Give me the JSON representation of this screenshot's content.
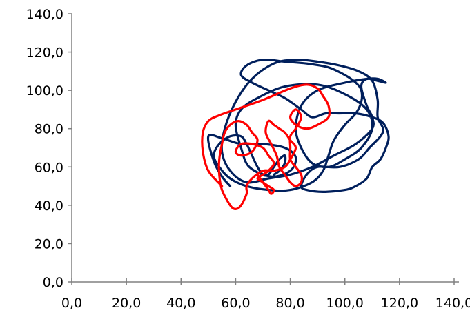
{
  "chart_data": {
    "type": "line",
    "title": "",
    "xlabel": "",
    "ylabel": "",
    "xlim": [
      0,
      140
    ],
    "ylim": [
      0,
      140
    ],
    "x_ticks": [
      "0,0",
      "20,0",
      "40,0",
      "60,0",
      "80,0",
      "100,0",
      "120,0",
      "140,0"
    ],
    "y_ticks": [
      "0,0",
      "20,0",
      "40,0",
      "60,0",
      "80,0",
      "100,0",
      "120,0",
      "140,0"
    ],
    "x_tick_values": [
      0,
      20,
      40,
      60,
      80,
      100,
      120,
      140
    ],
    "y_tick_values": [
      0,
      20,
      40,
      60,
      80,
      100,
      120,
      140
    ],
    "grid": false,
    "legend": "none",
    "series": [
      {
        "color": "#001f5c",
        "points": [
          [
            58,
            50
          ],
          [
            55,
            55
          ],
          [
            52,
            63
          ],
          [
            50,
            76
          ],
          [
            55,
            75
          ],
          [
            62,
            72
          ],
          [
            70,
            72
          ],
          [
            78,
            70
          ],
          [
            82,
            65
          ],
          [
            80,
            58
          ],
          [
            73,
            55
          ],
          [
            65,
            60
          ],
          [
            62,
            70
          ],
          [
            60,
            82
          ],
          [
            62,
            90
          ],
          [
            68,
            96
          ],
          [
            78,
            102
          ],
          [
            90,
            103
          ],
          [
            100,
            98
          ],
          [
            108,
            90
          ],
          [
            110,
            80
          ],
          [
            106,
            70
          ],
          [
            100,
            64
          ],
          [
            94,
            60
          ],
          [
            88,
            62
          ],
          [
            84,
            70
          ],
          [
            82,
            80
          ],
          [
            84,
            92
          ],
          [
            90,
            100
          ],
          [
            100,
            104
          ],
          [
            108,
            106
          ],
          [
            112,
            106
          ],
          [
            115,
            104
          ],
          [
            112,
            105
          ],
          [
            108,
            106
          ],
          [
            106,
            102
          ],
          [
            108,
            92
          ],
          [
            110,
            86
          ],
          [
            110,
            80
          ],
          [
            104,
            72
          ],
          [
            96,
            66
          ],
          [
            88,
            60
          ],
          [
            80,
            56
          ],
          [
            72,
            54
          ],
          [
            64,
            52
          ],
          [
            58,
            58
          ],
          [
            55,
            68
          ],
          [
            56,
            80
          ],
          [
            60,
            94
          ],
          [
            66,
            106
          ],
          [
            74,
            114
          ],
          [
            82,
            116
          ],
          [
            90,
            115
          ],
          [
            98,
            113
          ],
          [
            105,
            110
          ],
          [
            110,
            105
          ],
          [
            112,
            95
          ],
          [
            112,
            86
          ],
          [
            114,
            80
          ],
          [
            113,
            76
          ],
          [
            109,
            70
          ],
          [
            105,
            64
          ],
          [
            98,
            60
          ],
          [
            90,
            60
          ],
          [
            86,
            56
          ],
          [
            84,
            50
          ],
          [
            86,
            48
          ],
          [
            92,
            47
          ],
          [
            100,
            48
          ],
          [
            104,
            50
          ],
          [
            108,
            54
          ],
          [
            110,
            60
          ],
          [
            113,
            64
          ],
          [
            115,
            70
          ],
          [
            116,
            76
          ],
          [
            114,
            83
          ],
          [
            110,
            86
          ],
          [
            104,
            88
          ],
          [
            98,
            88
          ],
          [
            93,
            88
          ],
          [
            88,
            86
          ],
          [
            84,
            90
          ],
          [
            78,
            96
          ],
          [
            72,
            100
          ],
          [
            66,
            104
          ],
          [
            62,
            108
          ],
          [
            64,
            113
          ],
          [
            70,
            116
          ],
          [
            78,
            115
          ],
          [
            86,
            114
          ],
          [
            94,
            112
          ],
          [
            100,
            108
          ],
          [
            104,
            104
          ],
          [
            106,
            100
          ],
          [
            106,
            94
          ],
          [
            104,
            88
          ],
          [
            100,
            82
          ],
          [
            96,
            74
          ],
          [
            94,
            66
          ],
          [
            92,
            58
          ],
          [
            88,
            52
          ],
          [
            80,
            48
          ],
          [
            72,
            48
          ],
          [
            64,
            50
          ],
          [
            58,
            54
          ],
          [
            54,
            60
          ],
          [
            52,
            66
          ],
          [
            54,
            72
          ],
          [
            58,
            76
          ],
          [
            62,
            76
          ],
          [
            64,
            72
          ],
          [
            66,
            66
          ],
          [
            68,
            60
          ],
          [
            70,
            56
          ],
          [
            72,
            56
          ],
          [
            74,
            60
          ],
          [
            76,
            64
          ],
          [
            78,
            66
          ],
          [
            78,
            62
          ],
          [
            76,
            58
          ],
          [
            74,
            56
          ]
        ]
      },
      {
        "color": "#ff0000",
        "points": [
          [
            55,
            50
          ],
          [
            50,
            58
          ],
          [
            48,
            68
          ],
          [
            48,
            78
          ],
          [
            50,
            84
          ],
          [
            54,
            87
          ],
          [
            60,
            90
          ],
          [
            70,
            95
          ],
          [
            80,
            101
          ],
          [
            86,
            103
          ],
          [
            90,
            101
          ],
          [
            92,
            97
          ],
          [
            94,
            92
          ],
          [
            94,
            86
          ],
          [
            90,
            82
          ],
          [
            86,
            80
          ],
          [
            82,
            82
          ],
          [
            80,
            86
          ],
          [
            82,
            90
          ],
          [
            84,
            86
          ],
          [
            82,
            80
          ],
          [
            80,
            76
          ],
          [
            80,
            70
          ],
          [
            80,
            64
          ],
          [
            82,
            60
          ],
          [
            84,
            56
          ],
          [
            84,
            52
          ],
          [
            82,
            50
          ],
          [
            80,
            52
          ],
          [
            78,
            56
          ],
          [
            76,
            60
          ],
          [
            75,
            66
          ],
          [
            73,
            72
          ],
          [
            71,
            78
          ],
          [
            72,
            84
          ],
          [
            74,
            82
          ],
          [
            76,
            80
          ],
          [
            78,
            78
          ],
          [
            80,
            74
          ],
          [
            82,
            70
          ],
          [
            80,
            64
          ],
          [
            78,
            60
          ],
          [
            74,
            58
          ],
          [
            70,
            58
          ],
          [
            66,
            54
          ],
          [
            64,
            50
          ],
          [
            64,
            46
          ],
          [
            62,
            40
          ],
          [
            60,
            38
          ],
          [
            58,
            40
          ],
          [
            55,
            48
          ],
          [
            54,
            56
          ],
          [
            54,
            64
          ],
          [
            55,
            72
          ],
          [
            56,
            78
          ],
          [
            58,
            82
          ],
          [
            61,
            84
          ],
          [
            64,
            82
          ],
          [
            66,
            78
          ],
          [
            68,
            74
          ],
          [
            66,
            68
          ],
          [
            62,
            66
          ],
          [
            60,
            68
          ],
          [
            62,
            72
          ],
          [
            66,
            72
          ],
          [
            70,
            70
          ],
          [
            72,
            66
          ],
          [
            74,
            62
          ],
          [
            72,
            58
          ],
          [
            70,
            56
          ],
          [
            68,
            54
          ],
          [
            70,
            52
          ],
          [
            72,
            50
          ],
          [
            74,
            48
          ],
          [
            73,
            46
          ],
          [
            72,
            48
          ],
          [
            70,
            52
          ],
          [
            68,
            56
          ]
        ]
      }
    ]
  }
}
